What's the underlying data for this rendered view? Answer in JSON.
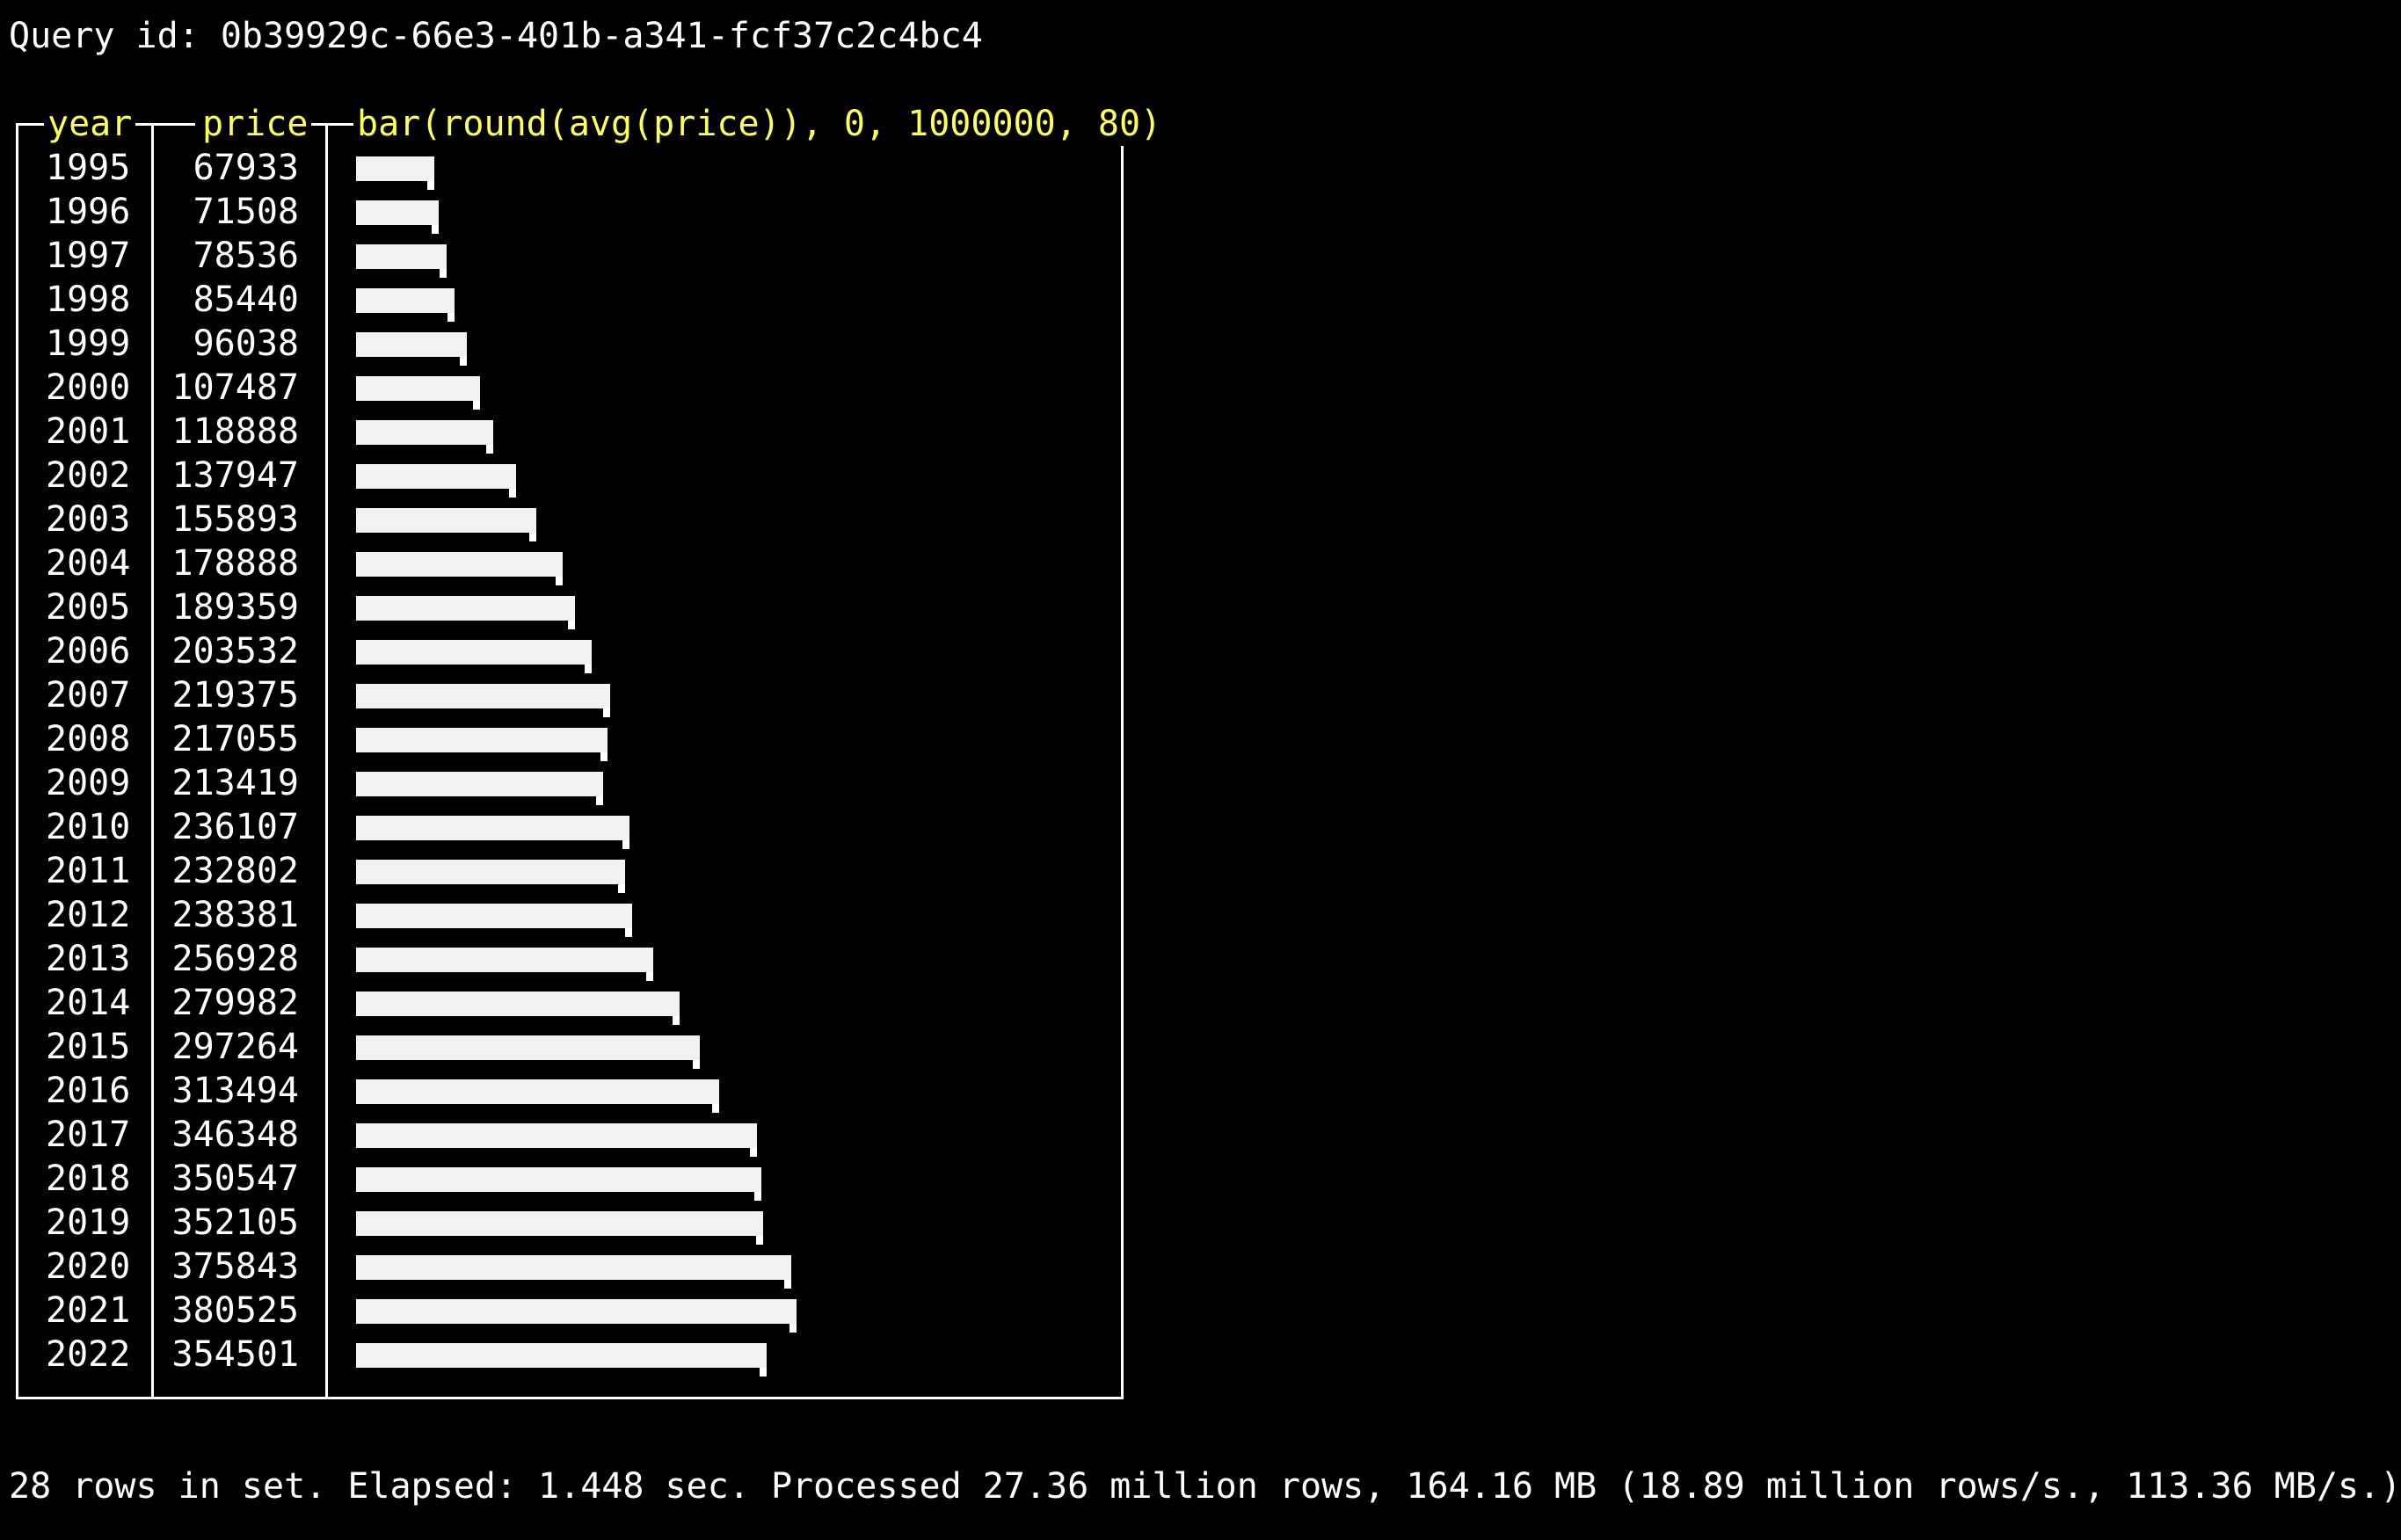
{
  "terminal": {
    "query_line": "Query id: 0b39929c-66e3-401b-a341-fcf37c2c4bc4",
    "footer_line": "28 rows in set. Elapsed: 1.448 sec. Processed 27.36 million rows, 164.16 MB (18.89 million rows/s., 113.36 MB/s.)",
    "header_color": "#ffff55",
    "text_color": "#ffffff",
    "background_color": "#000000"
  },
  "table": {
    "columns": [
      "year",
      "price",
      "bar(round(avg(price)), 0, 1000000, 80)"
    ],
    "bar_min": 0,
    "bar_max": 1000000,
    "bar_width_chars": 80,
    "rows": [
      {
        "year": "1995",
        "price": "67933"
      },
      {
        "year": "1996",
        "price": "71508"
      },
      {
        "year": "1997",
        "price": "78536"
      },
      {
        "year": "1998",
        "price": "85440"
      },
      {
        "year": "1999",
        "price": "96038"
      },
      {
        "year": "2000",
        "price": "107487"
      },
      {
        "year": "2001",
        "price": "118888"
      },
      {
        "year": "2002",
        "price": "137947"
      },
      {
        "year": "2003",
        "price": "155893"
      },
      {
        "year": "2004",
        "price": "178888"
      },
      {
        "year": "2005",
        "price": "189359"
      },
      {
        "year": "2006",
        "price": "203532"
      },
      {
        "year": "2007",
        "price": "219375"
      },
      {
        "year": "2008",
        "price": "217055"
      },
      {
        "year": "2009",
        "price": "213419"
      },
      {
        "year": "2010",
        "price": "236107"
      },
      {
        "year": "2011",
        "price": "232802"
      },
      {
        "year": "2012",
        "price": "238381"
      },
      {
        "year": "2013",
        "price": "256928"
      },
      {
        "year": "2014",
        "price": "279982"
      },
      {
        "year": "2015",
        "price": "297264"
      },
      {
        "year": "2016",
        "price": "313494"
      },
      {
        "year": "2017",
        "price": "346348"
      },
      {
        "year": "2018",
        "price": "350547"
      },
      {
        "year": "2019",
        "price": "352105"
      },
      {
        "year": "2020",
        "price": "375843"
      },
      {
        "year": "2021",
        "price": "380525"
      },
      {
        "year": "2022",
        "price": "354501"
      }
    ]
  }
}
